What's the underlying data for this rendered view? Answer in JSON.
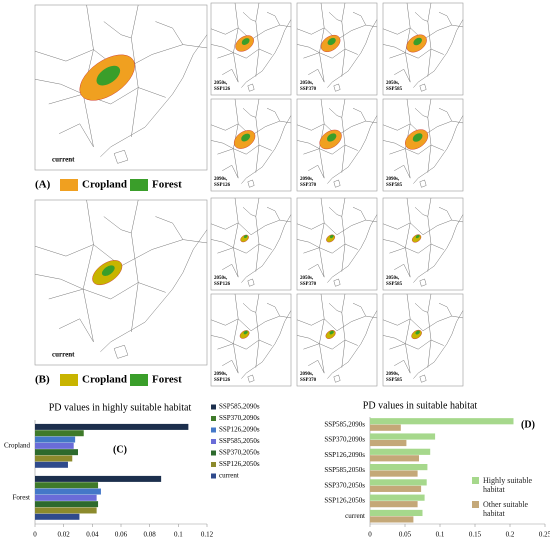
{
  "panel_a": {
    "label": "(A)",
    "legend": [
      "Cropland",
      "Forest"
    ],
    "map_label": "current",
    "small_maps": [
      {
        "period": "2050s,",
        "scenario": "SSP126"
      },
      {
        "period": "2050s,",
        "scenario": "SSP370"
      },
      {
        "period": "2050s,",
        "scenario": "SSP585"
      },
      {
        "period": "2090s,",
        "scenario": "SSP126"
      },
      {
        "period": "2090s,",
        "scenario": "SSP370"
      },
      {
        "period": "2090s,",
        "scenario": "SSP585"
      }
    ]
  },
  "panel_b": {
    "label": "(B)",
    "legend": [
      "Cropland",
      "Forest"
    ],
    "map_label": "current",
    "small_maps": [
      {
        "period": "2050s,",
        "scenario": "SSP126"
      },
      {
        "period": "2050s,",
        "scenario": "SSP370"
      },
      {
        "period": "2050s,",
        "scenario": "SSP585"
      },
      {
        "period": "2090s,",
        "scenario": "SSP126"
      },
      {
        "period": "2090s,",
        "scenario": "SSP370"
      },
      {
        "period": "2090s,",
        "scenario": "SSP585"
      }
    ]
  },
  "chart_data": [
    {
      "type": "hbar",
      "title": "PD values in highly suitable habitat",
      "annotation": "(C)",
      "categories": [
        "Cropland",
        "Forest"
      ],
      "series": [
        {
          "name": "SSP585,2090s",
          "color": "#1c2f4d",
          "values": [
            0.107,
            0.088
          ]
        },
        {
          "name": "SSP370,2090s",
          "color": "#3f7a2a",
          "values": [
            0.034,
            0.044
          ]
        },
        {
          "name": "SSP126,2090s",
          "color": "#4478c8",
          "values": [
            0.028,
            0.046
          ]
        },
        {
          "name": "SSP585,2050s",
          "color": "#6a6cd8",
          "values": [
            0.027,
            0.043
          ]
        },
        {
          "name": "SSP370,2050s",
          "color": "#2d6a2d",
          "values": [
            0.03,
            0.044
          ]
        },
        {
          "name": "SSP126,2050s",
          "color": "#8c8a2c",
          "values": [
            0.026,
            0.043
          ]
        },
        {
          "name": "current",
          "color": "#2f4a8c",
          "values": [
            0.023,
            0.031
          ]
        }
      ],
      "xlim": [
        0,
        0.12
      ],
      "xticks": [
        0,
        0.02,
        0.04,
        0.06,
        0.08,
        0.1,
        0.12
      ]
    },
    {
      "type": "hbar",
      "title": "PD values in suitable habitat",
      "annotation": "(D)",
      "categories": [
        "SSP585,2090s",
        "SSP370,2090s",
        "SSP126,2090s",
        "SSP585,2050s",
        "SSP370,2050s",
        "SSP126,2050s",
        "current"
      ],
      "series": [
        {
          "name": "Highly suitable habitat",
          "color": "#a6d88c",
          "values": [
            0.205,
            0.093,
            0.086,
            0.082,
            0.081,
            0.078,
            0.075
          ]
        },
        {
          "name": "Other suitable habitat",
          "color": "#c4a878",
          "values": [
            0.044,
            0.052,
            0.07,
            0.068,
            0.073,
            0.068,
            0.062
          ]
        }
      ],
      "xlim": [
        0,
        0.25
      ],
      "xticks": [
        0,
        0.05,
        0.1,
        0.15,
        0.2,
        0.25
      ]
    }
  ]
}
